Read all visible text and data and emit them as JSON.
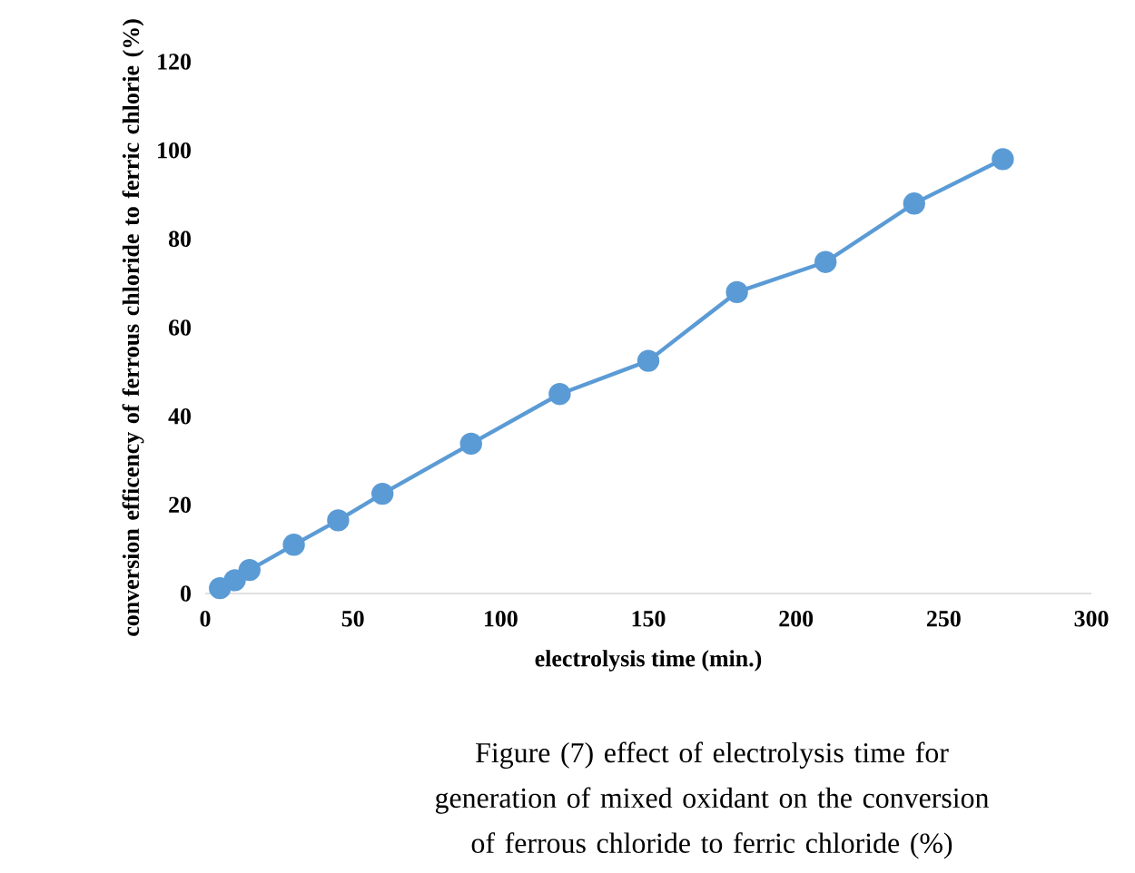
{
  "chart_data": {
    "type": "line",
    "xlabel": "electrolysis time (min.)",
    "ylabel": "conversion  efficency of ferrous chloride to ferric chlorie (%)",
    "x": [
      5,
      10,
      15,
      30,
      45,
      60,
      90,
      120,
      150,
      180,
      210,
      240,
      270
    ],
    "series": [
      {
        "color": "#5b9bd5",
        "values": [
          1.2,
          3,
          5.3,
          11,
          16.5,
          22.5,
          33.8,
          45,
          52.5,
          68,
          74.8,
          88,
          98
        ]
      }
    ],
    "xlim": [
      0,
      300
    ],
    "xticks": [
      0,
      50,
      100,
      150,
      200,
      250,
      300
    ],
    "ylim": [
      0,
      120
    ],
    "yticks": [
      0,
      20,
      40,
      60,
      80,
      100,
      120
    ],
    "grid": false,
    "marker": "circle",
    "line_style": "solid",
    "annotations": [
      "Figure (7) effect of electrolysis time for generation of mixed oxidant on the conversion of ferrous chloride to ferric chloride (%)"
    ]
  }
}
